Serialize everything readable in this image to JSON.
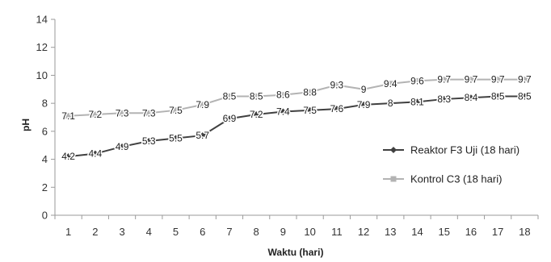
{
  "chart_data": {
    "type": "line",
    "xlabel": "Waktu (hari)",
    "ylabel": "pH",
    "ylim": [
      0,
      14
    ],
    "y_ticks": [
      "0",
      "2",
      "4",
      "6",
      "8",
      "10",
      "12",
      "14"
    ],
    "categories": [
      "1",
      "2",
      "3",
      "4",
      "5",
      "6",
      "7",
      "8",
      "9",
      "10",
      "11",
      "12",
      "13",
      "14",
      "15",
      "16",
      "17",
      "18"
    ],
    "grid": false,
    "legend_position": "right",
    "series": [
      {
        "name": "Reaktor F3 Uji (18 hari)",
        "color": "#404040",
        "marker": "diamond",
        "values": [
          4.2,
          4.4,
          4.9,
          5.3,
          5.5,
          5.7,
          6.9,
          7.2,
          7.4,
          7.5,
          7.6,
          7.9,
          8,
          8.1,
          8.3,
          8.4,
          8.5,
          8.5
        ],
        "labels": [
          "4.2",
          "4.4",
          "4.9",
          "5.3",
          "5.5",
          "5.7",
          "6.9",
          "7.2",
          "7.4",
          "7.5",
          "7.6",
          "7.9",
          "8",
          "8.1",
          "8.3",
          "8.4",
          "8.5",
          "8.5"
        ]
      },
      {
        "name": "Kontrol C3 (18 hari)",
        "color": "#b3b3b3",
        "marker": "square",
        "values": [
          7.1,
          7.2,
          7.3,
          7.3,
          7.5,
          7.9,
          8.5,
          8.5,
          8.6,
          8.8,
          9.3,
          9,
          9.4,
          9.6,
          9.7,
          9.7,
          9.7,
          9.7
        ],
        "labels": [
          "7.1",
          "7.2",
          "7.3",
          "7.3",
          "7.5",
          "7.9",
          "8.5",
          "8.5",
          "8.6",
          "8.8",
          "9.3",
          "9",
          "9.4",
          "9.6",
          "9.7",
          "9.7",
          "9.7",
          "9.7"
        ]
      }
    ]
  }
}
